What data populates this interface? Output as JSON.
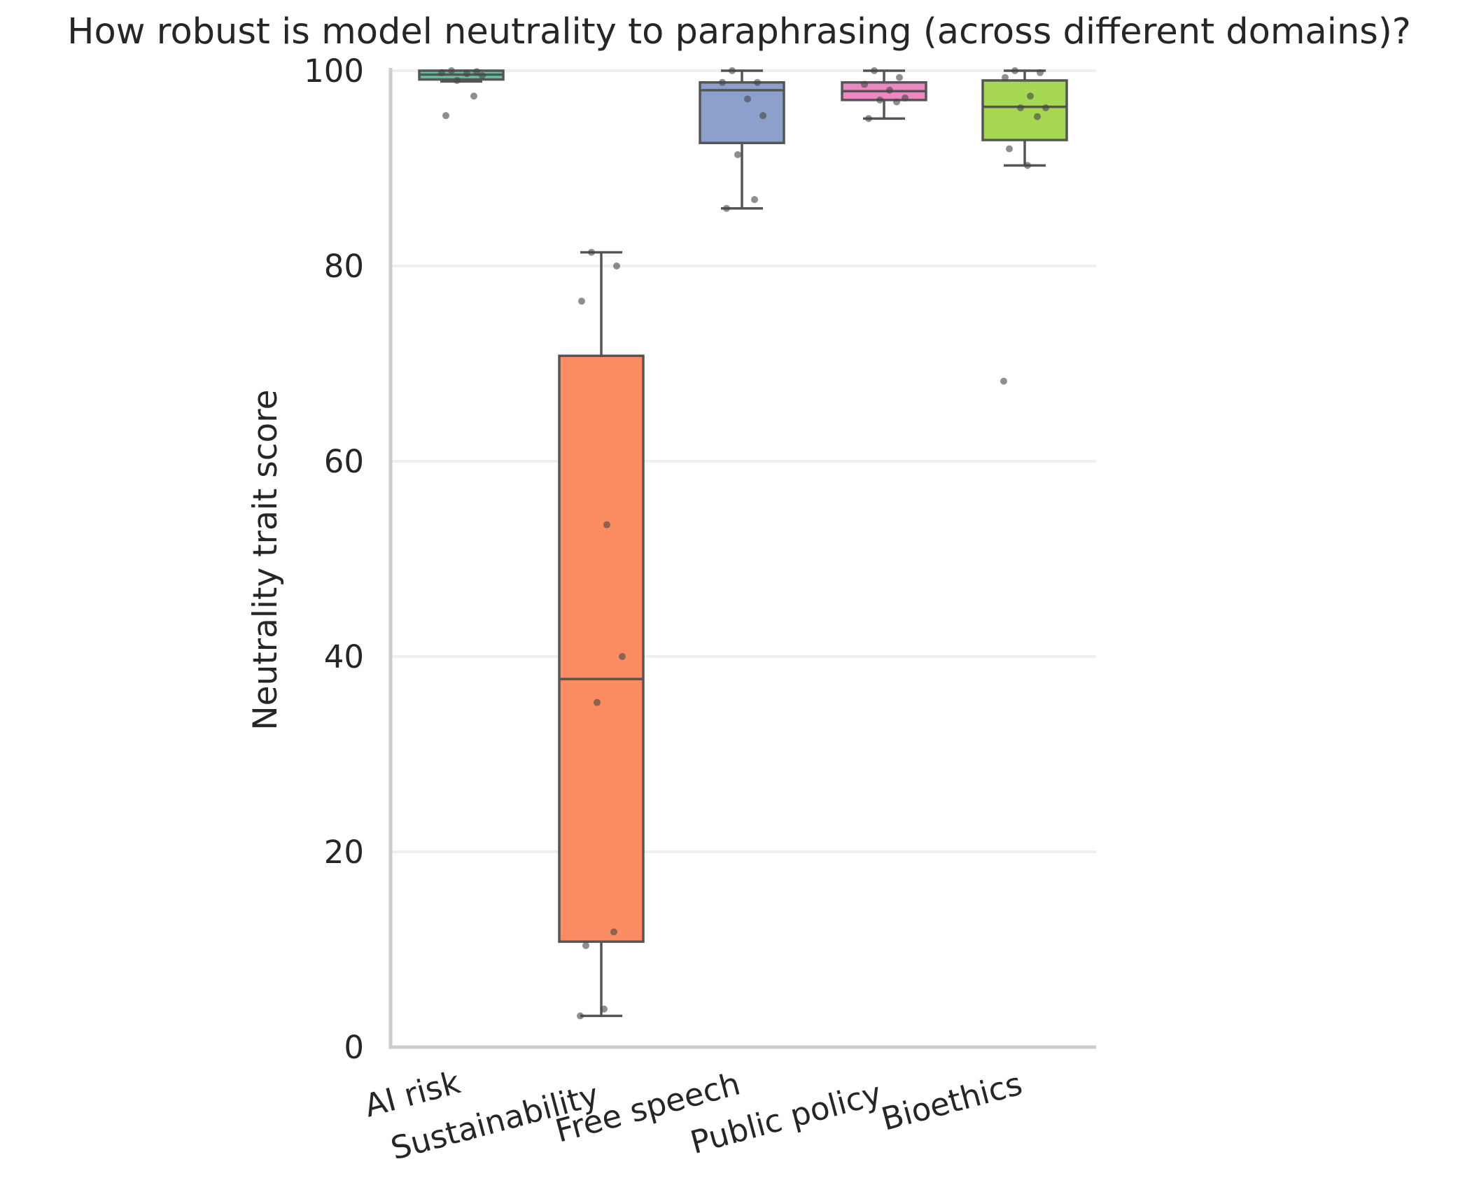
{
  "chart_data": {
    "type": "box",
    "title": "How robust is model neutrality to paraphrasing (across different domains)?",
    "xlabel": "",
    "ylabel": "Neutrality trait score",
    "ylim": [
      0,
      100
    ],
    "yticks": [
      0,
      20,
      40,
      60,
      80,
      100
    ],
    "grid": "horizontal",
    "categories": [
      "AI risk",
      "Sustainability",
      "Free speech",
      "Public policy",
      "Bioethics"
    ],
    "colors": [
      "#66c2a5",
      "#fc8d62",
      "#8da0cb",
      "#e78ac3",
      "#a6d854"
    ],
    "boxes": [
      {
        "category": "AI risk",
        "whisker_low": 98.9,
        "q1": 99.1,
        "median": 99.6,
        "q3": 100.0,
        "whisker_high": 100.0
      },
      {
        "category": "Sustainability",
        "whisker_low": 3.2,
        "q1": 10.8,
        "median": 37.7,
        "q3": 70.8,
        "whisker_high": 81.4
      },
      {
        "category": "Free speech",
        "whisker_low": 85.9,
        "q1": 92.6,
        "median": 98.0,
        "q3": 98.8,
        "whisker_high": 100.0
      },
      {
        "category": "Public policy",
        "whisker_low": 95.1,
        "q1": 97.0,
        "median": 97.9,
        "q3": 98.8,
        "whisker_high": 100.0
      },
      {
        "category": "Bioethics",
        "whisker_low": 90.3,
        "q1": 92.9,
        "median": 96.3,
        "q3": 99.0,
        "whisker_high": 100.0
      }
    ],
    "points": [
      {
        "category": "AI risk",
        "values": [
          100.0,
          99.9,
          99.8,
          99.7,
          99.5,
          99.0,
          97.4,
          95.4
        ]
      },
      {
        "category": "Sustainability",
        "values": [
          81.4,
          80.0,
          76.4,
          53.5,
          40.0,
          35.3,
          11.8,
          10.4,
          3.9,
          3.2
        ]
      },
      {
        "category": "Free speech",
        "values": [
          100.0,
          98.8,
          98.8,
          97.1,
          95.4,
          91.4,
          86.8,
          85.9
        ]
      },
      {
        "category": "Public policy",
        "values": [
          100.0,
          99.3,
          98.6,
          98.0,
          97.2,
          97.0,
          96.8,
          95.1
        ]
      },
      {
        "category": "Bioethics",
        "values": [
          100.0,
          99.8,
          99.3,
          97.4,
          96.2,
          96.2,
          95.3,
          92.0,
          90.3,
          68.2
        ]
      }
    ]
  }
}
